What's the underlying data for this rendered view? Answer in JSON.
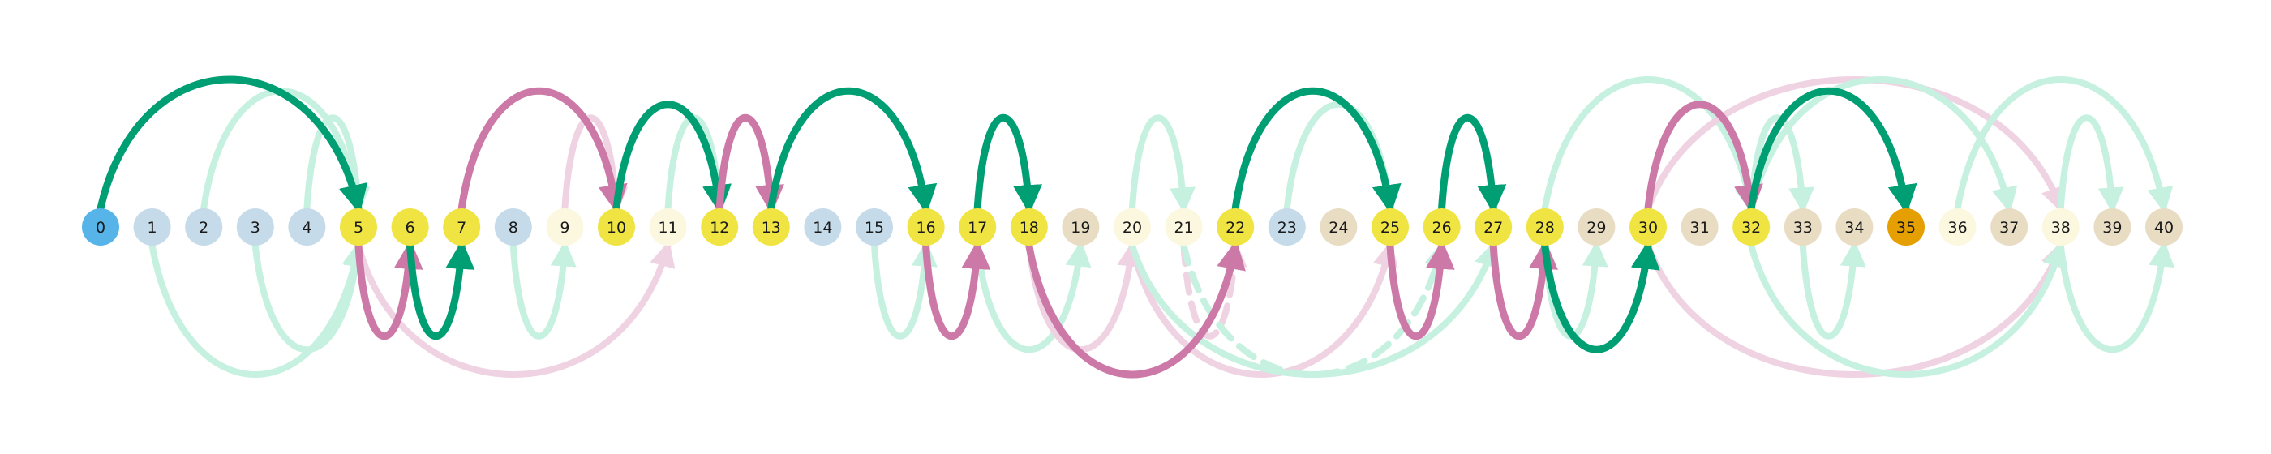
{
  "chart_data": {
    "type": "jump-diagram",
    "start_node": "0",
    "goal_node": "35",
    "colors": {
      "start": "#56b4e9",
      "goal": "#e69f00",
      "path_node": "#f0e442",
      "visited_blue": "#c6dbea",
      "visited_beige": "#e8dcc3",
      "unvisited_cream": "#fbf8df",
      "green": "#009e73",
      "pink": "#cc79a7",
      "light_green": "#c6f1e1",
      "light_pink": "#efd3e2"
    },
    "nodes": [
      {
        "label": "0",
        "kind": "start"
      },
      {
        "label": "1",
        "kind": "visited_blue"
      },
      {
        "label": "2",
        "kind": "visited_blue"
      },
      {
        "label": "3",
        "kind": "visited_blue"
      },
      {
        "label": "4",
        "kind": "visited_blue"
      },
      {
        "label": "5",
        "kind": "path_node"
      },
      {
        "label": "6",
        "kind": "path_node"
      },
      {
        "label": "7",
        "kind": "path_node"
      },
      {
        "label": "8",
        "kind": "visited_blue"
      },
      {
        "label": "9",
        "kind": "unvisited_cream"
      },
      {
        "label": "10",
        "kind": "path_node"
      },
      {
        "label": "11",
        "kind": "unvisited_cream"
      },
      {
        "label": "12",
        "kind": "path_node"
      },
      {
        "label": "13",
        "kind": "path_node"
      },
      {
        "label": "14",
        "kind": "visited_blue"
      },
      {
        "label": "15",
        "kind": "visited_blue"
      },
      {
        "label": "16",
        "kind": "path_node"
      },
      {
        "label": "17",
        "kind": "path_node"
      },
      {
        "label": "18",
        "kind": "path_node"
      },
      {
        "label": "19",
        "kind": "visited_beige"
      },
      {
        "label": "20",
        "kind": "unvisited_cream"
      },
      {
        "label": "21",
        "kind": "unvisited_cream"
      },
      {
        "label": "22",
        "kind": "path_node"
      },
      {
        "label": "23",
        "kind": "visited_blue"
      },
      {
        "label": "24",
        "kind": "visited_beige"
      },
      {
        "label": "25",
        "kind": "path_node"
      },
      {
        "label": "26",
        "kind": "path_node"
      },
      {
        "label": "27",
        "kind": "path_node"
      },
      {
        "label": "28",
        "kind": "path_node"
      },
      {
        "label": "29",
        "kind": "visited_beige"
      },
      {
        "label": "30",
        "kind": "path_node"
      },
      {
        "label": "31",
        "kind": "visited_beige"
      },
      {
        "label": "32",
        "kind": "path_node"
      },
      {
        "label": "33",
        "kind": "visited_beige"
      },
      {
        "label": "34",
        "kind": "visited_beige"
      },
      {
        "label": "35",
        "kind": "goal"
      },
      {
        "label": "36",
        "kind": "unvisited_cream"
      },
      {
        "label": "37",
        "kind": "visited_beige"
      },
      {
        "label": "38",
        "kind": "unvisited_cream"
      },
      {
        "label": "39",
        "kind": "visited_beige"
      },
      {
        "label": "40",
        "kind": "visited_beige"
      }
    ],
    "path_edges": [
      {
        "from": 0,
        "to": 5,
        "side": "above",
        "color": "green"
      },
      {
        "from": 5,
        "to": 6,
        "side": "below",
        "color": "pink"
      },
      {
        "from": 6,
        "to": 7,
        "side": "below",
        "color": "green"
      },
      {
        "from": 7,
        "to": 10,
        "side": "above",
        "color": "pink"
      },
      {
        "from": 10,
        "to": 12,
        "side": "above",
        "color": "green"
      },
      {
        "from": 12,
        "to": 13,
        "side": "above",
        "color": "pink"
      },
      {
        "from": 13,
        "to": 16,
        "side": "above",
        "color": "green"
      },
      {
        "from": 16,
        "to": 17,
        "side": "below",
        "color": "pink"
      },
      {
        "from": 17,
        "to": 18,
        "side": "above",
        "color": "green"
      },
      {
        "from": 18,
        "to": 22,
        "side": "below",
        "color": "pink"
      },
      {
        "from": 22,
        "to": 25,
        "side": "above",
        "color": "green"
      },
      {
        "from": 25,
        "to": 26,
        "side": "below",
        "color": "pink"
      },
      {
        "from": 26,
        "to": 27,
        "side": "above",
        "color": "green"
      },
      {
        "from": 27,
        "to": 28,
        "side": "below",
        "color": "pink"
      },
      {
        "from": 28,
        "to": 30,
        "side": "below",
        "color": "green"
      },
      {
        "from": 30,
        "to": 32,
        "side": "above",
        "color": "pink"
      },
      {
        "from": 32,
        "to": 35,
        "side": "above",
        "color": "green"
      }
    ],
    "faded_edges": [
      {
        "from": 2,
        "to": 5,
        "side": "above",
        "color": "light_green"
      },
      {
        "from": 4,
        "to": 5,
        "side": "above",
        "color": "light_green"
      },
      {
        "from": 1,
        "to": 5,
        "side": "below",
        "color": "light_green"
      },
      {
        "from": 3,
        "to": 5,
        "side": "below",
        "color": "light_green"
      },
      {
        "from": 9,
        "to": 10,
        "side": "above",
        "color": "light_pink"
      },
      {
        "from": 11,
        "to": 12,
        "side": "above",
        "color": "light_green"
      },
      {
        "from": 5,
        "to": 11,
        "side": "below",
        "color": "light_pink"
      },
      {
        "from": 8,
        "to": 9,
        "side": "below",
        "color": "light_green"
      },
      {
        "from": 15,
        "to": 16,
        "side": "below",
        "color": "light_green"
      },
      {
        "from": 17,
        "to": 19,
        "side": "below",
        "color": "light_green"
      },
      {
        "from": 18,
        "to": 20,
        "side": "below",
        "color": "light_pink"
      },
      {
        "from": 20,
        "to": 21,
        "side": "above",
        "color": "light_green"
      },
      {
        "from": 20,
        "to": 25,
        "side": "below",
        "color": "light_pink"
      },
      {
        "from": 21,
        "to": 22,
        "side": "below",
        "color": "light_pink",
        "dashed": true
      },
      {
        "from": 20,
        "to": 27,
        "side": "below",
        "color": "light_green"
      },
      {
        "from": 21,
        "to": 26,
        "side": "below",
        "color": "light_green",
        "dashed": true
      },
      {
        "from": 23,
        "to": 25,
        "side": "above",
        "color": "light_green"
      },
      {
        "from": 28,
        "to": 32,
        "side": "above",
        "color": "light_green"
      },
      {
        "from": 28,
        "to": 29,
        "side": "below",
        "color": "light_green"
      },
      {
        "from": 30,
        "to": 38,
        "side": "below",
        "color": "light_pink"
      },
      {
        "from": 30,
        "to": 38,
        "side": "above",
        "color": "light_pink"
      },
      {
        "from": 32,
        "to": 33,
        "side": "above",
        "color": "light_green"
      },
      {
        "from": 32,
        "to": 37,
        "side": "above",
        "color": "light_green"
      },
      {
        "from": 32,
        "to": 38,
        "side": "below",
        "color": "light_green"
      },
      {
        "from": 33,
        "to": 34,
        "side": "below",
        "color": "light_green"
      },
      {
        "from": 36,
        "to": 40,
        "side": "above",
        "color": "light_green"
      },
      {
        "from": 38,
        "to": 39,
        "side": "above",
        "color": "light_green"
      },
      {
        "from": 38,
        "to": 40,
        "side": "below",
        "color": "light_green"
      }
    ]
  }
}
